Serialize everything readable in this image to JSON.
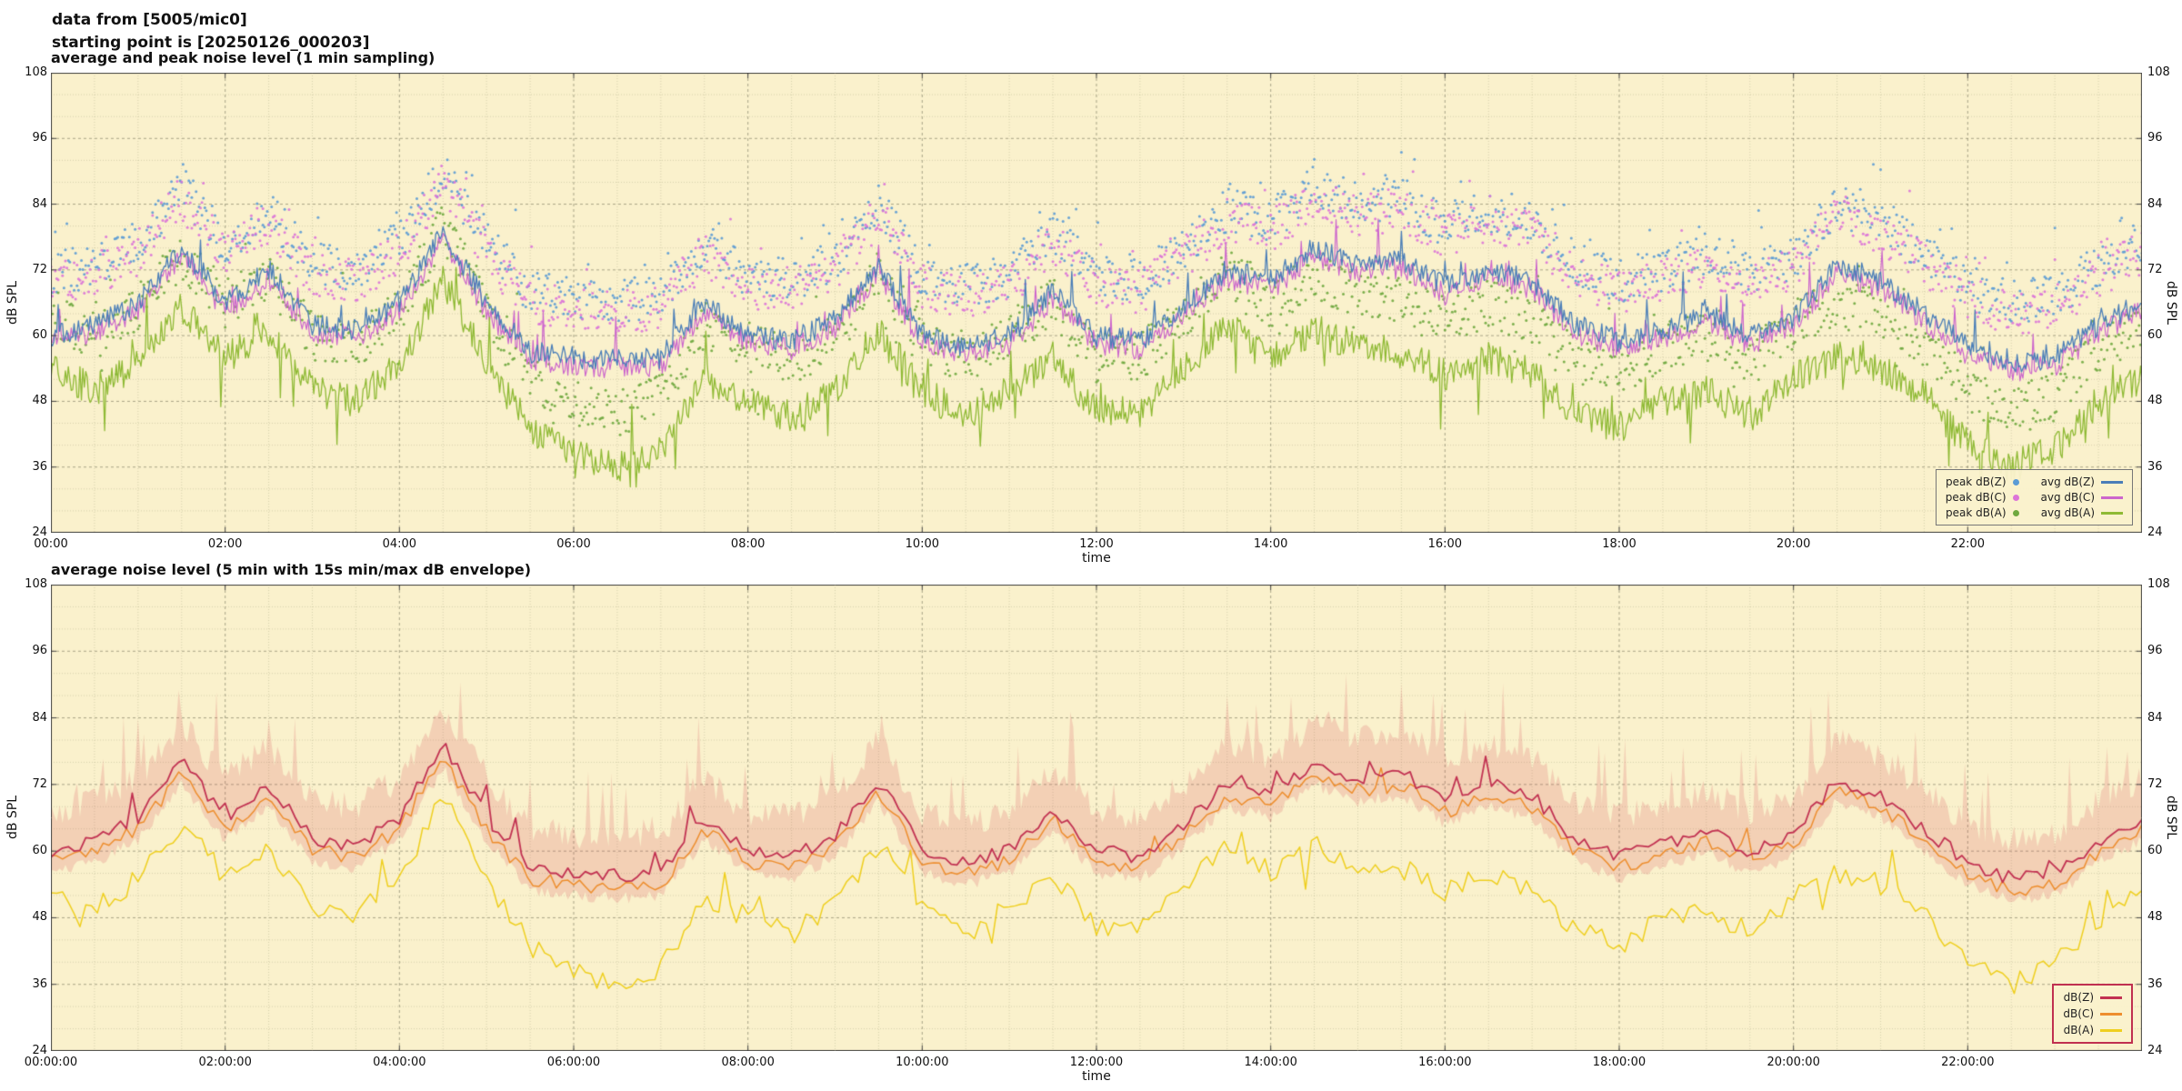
{
  "header": {
    "line1": "data from [5005/mic0]",
    "line2": "starting point is [20250126_000203]"
  },
  "style": {
    "plot_bg": "#faf1cc",
    "grid_major": "rgba(115,113,88,0.60)",
    "grid_minor": "rgba(150,148,115,0.35)",
    "frame": "#444444",
    "text": "#111111"
  },
  "chart_data": [
    {
      "type": "scatter",
      "title": "average and peak noise level (1 min sampling)",
      "xlabel": "time",
      "ylabel": "dB SPL",
      "xlim_hours": [
        0,
        24
      ],
      "ylim": [
        24,
        108
      ],
      "y_ticks": [
        24,
        36,
        48,
        60,
        72,
        84,
        96,
        108
      ],
      "x_tick_hours": [
        0,
        2,
        4,
        6,
        8,
        10,
        12,
        14,
        16,
        18,
        20,
        22
      ],
      "x_tick_labels": [
        "00:00",
        "02:00",
        "04:00",
        "06:00",
        "08:00",
        "10:00",
        "12:00",
        "14:00",
        "16:00",
        "18:00",
        "20:00",
        "22:00"
      ],
      "anchor_step_hours": 0.5,
      "grid": true,
      "legend_position": "bottom-right",
      "legend_rows": [
        [
          "peak dB(Z)",
          "avg dB(Z)"
        ],
        [
          "peak dB(C)",
          "avg dB(C)"
        ],
        [
          "peak dB(A)",
          "avg dB(A)"
        ]
      ],
      "series": [
        {
          "name": "peak dB(Z)",
          "style": "points",
          "color": "#5B9BD5",
          "step_min": 1,
          "jitter": 4,
          "spike_prob": 0.05,
          "spike_amp": 9,
          "spike_dir": 1,
          "values": [
            71,
            73,
            77,
            87,
            77,
            83,
            73,
            72,
            77,
            90,
            77,
            68,
            67,
            66.5,
            67,
            77,
            71,
            70,
            74,
            84,
            71,
            69,
            71,
            79,
            71,
            70,
            76,
            83,
            81,
            87,
            84,
            85,
            80,
            83,
            81,
            73,
            70,
            72,
            75,
            71,
            74,
            84,
            81,
            75,
            69,
            66,
            67,
            73,
            77
          ]
        },
        {
          "name": "peak dB(C)",
          "style": "points",
          "color": "#DC74D8",
          "step_min": 1,
          "jitter": 4,
          "spike_prob": 0.05,
          "spike_amp": 9,
          "spike_dir": 1,
          "values": [
            69,
            71,
            75,
            85,
            75,
            81,
            71,
            70,
            75,
            88,
            75,
            66,
            65,
            64.5,
            65,
            75,
            69,
            68,
            72,
            82,
            69,
            67,
            69,
            77,
            69,
            68,
            74,
            81,
            79,
            85,
            82,
            83,
            78,
            81,
            79,
            71,
            68,
            70,
            73,
            69,
            72,
            82,
            79,
            73,
            67,
            64,
            65,
            71,
            75
          ]
        },
        {
          "name": "peak dB(A)",
          "style": "points",
          "color": "#6FA83F",
          "step_min": 1,
          "jitter": 4.5,
          "spike_prob": 0.05,
          "spike_amp": 9,
          "spike_dir": 0,
          "values": [
            64,
            60,
            65,
            75,
            66,
            71,
            60,
            58,
            65,
            80,
            65,
            53,
            48,
            46,
            49,
            62,
            58,
            55,
            60,
            71,
            60,
            55,
            60,
            66,
            56,
            56,
            64,
            72,
            66,
            71,
            68,
            67,
            63,
            66,
            63,
            56,
            53,
            58,
            60,
            55,
            62,
            66,
            64,
            59,
            50,
            46,
            49,
            58,
            62
          ]
        },
        {
          "name": "avg dB(C)",
          "style": "line",
          "color": "#CC66CC",
          "width": 1.2,
          "step_min": 1,
          "jitter": 2,
          "spike_prob": 0.04,
          "spike_amp": 8,
          "spike_dir": 1,
          "values": [
            58.5,
            60.5,
            64.5,
            74.5,
            64.5,
            70.5,
            60.5,
            59.5,
            64.5,
            77.5,
            64.5,
            55.5,
            54.5,
            54,
            54.5,
            64.5,
            58.5,
            57.5,
            61.5,
            71.5,
            58.5,
            56.5,
            58.5,
            66.5,
            58.5,
            57.5,
            63.5,
            70.5,
            68.5,
            74.5,
            71.5,
            72.5,
            67.5,
            70.5,
            68.5,
            60.5,
            57.5,
            59.5,
            62.5,
            58.5,
            61.5,
            71.5,
            68.5,
            62.5,
            56.5,
            53.5,
            54.5,
            60.5,
            64.5
          ]
        },
        {
          "name": "avg dB(Z)",
          "style": "line",
          "color": "#4A7EB8",
          "width": 1.3,
          "step_min": 1,
          "jitter": 2,
          "spike_prob": 0.04,
          "spike_amp": 8,
          "spike_dir": 1,
          "values": [
            60,
            62,
            66,
            76,
            66,
            72,
            62,
            61,
            66,
            79,
            66,
            57,
            56,
            55.5,
            56,
            66,
            60,
            59,
            63,
            73,
            60,
            58,
            60,
            68,
            60,
            59,
            65,
            72,
            70,
            76,
            73,
            74,
            69,
            72,
            70,
            62,
            59,
            61,
            64,
            60,
            63,
            73,
            70,
            64,
            58,
            55,
            56,
            62,
            66
          ]
        },
        {
          "name": "avg dB(A)",
          "style": "line",
          "color": "#8FBA35",
          "width": 1.3,
          "step_min": 1,
          "jitter": 3,
          "spike_prob": 0.06,
          "spike_amp": 9,
          "spike_dir": 0,
          "values": [
            54,
            50,
            55,
            65,
            56,
            61,
            50,
            48,
            55,
            70,
            55,
            43,
            38,
            36,
            39,
            52,
            48,
            45,
            50,
            61,
            50,
            45,
            50,
            56,
            46,
            46,
            54,
            62,
            56,
            61,
            58,
            57,
            53,
            56,
            53,
            46,
            43,
            48,
            50,
            45,
            52,
            56,
            54,
            49,
            40,
            36,
            39,
            48,
            52
          ]
        }
      ]
    },
    {
      "type": "line",
      "title": "average noise level (5 min with 15s min/max dB envelope)",
      "xlabel": "time",
      "ylabel": "dB SPL",
      "xlim_hours": [
        0,
        24
      ],
      "ylim": [
        24,
        108
      ],
      "y_ticks": [
        24,
        36,
        48,
        60,
        72,
        84,
        96,
        108
      ],
      "x_tick_hours": [
        0,
        2,
        4,
        6,
        8,
        10,
        12,
        14,
        16,
        18,
        20,
        22
      ],
      "x_tick_labels": [
        "00:00:00",
        "02:00:00",
        "04:00:00",
        "06:00:00",
        "08:00:00",
        "10:00:00",
        "12:00:00",
        "14:00:00",
        "16:00:00",
        "18:00:00",
        "20:00:00",
        "22:00:00"
      ],
      "anchor_step_hours": 0.5,
      "grid": true,
      "legend_position": "bottom-right",
      "legend_rows": [
        [
          "dB(Z)"
        ],
        [
          "dB(C)"
        ],
        [
          "dB(A)"
        ]
      ],
      "series": [
        {
          "name": "min/max envelope",
          "style": "band",
          "color": "rgba(215,80,90,0.20)",
          "step_min": 2,
          "jitter": 2.5,
          "spike_prob": 0.1,
          "spike_amp": 13,
          "spike_dir": 1,
          "max_values": [
            67,
            69,
            73,
            83,
            73,
            79,
            69,
            68,
            73,
            86,
            73,
            64,
            63,
            62.5,
            63,
            73,
            67,
            66,
            70,
            80,
            67,
            65,
            67,
            75,
            67,
            66,
            72,
            79,
            77,
            83,
            80,
            81,
            76,
            79,
            77,
            69,
            66,
            68,
            71,
            67,
            70,
            80,
            77,
            71,
            65,
            62,
            63,
            69,
            73
          ],
          "min_values": [
            56,
            58,
            62,
            72,
            62,
            68,
            58,
            57,
            62,
            75,
            62,
            53,
            52,
            51.5,
            52,
            62,
            56,
            55,
            59,
            69,
            56,
            54,
            56,
            64,
            56,
            55,
            61,
            68,
            66,
            72,
            69,
            70,
            65,
            68,
            66,
            58,
            55,
            57,
            60,
            56,
            59,
            69,
            66,
            60,
            54,
            51,
            52,
            58,
            62
          ]
        },
        {
          "name": "dB(A)",
          "style": "line",
          "color": "#EFCF1E",
          "width": 1.5,
          "step_min": 4,
          "jitter": 2,
          "spike_prob": 0.04,
          "spike_amp": 7,
          "spike_dir": 0,
          "values": [
            54,
            50,
            55,
            65,
            56,
            61,
            50,
            48,
            55,
            70,
            55,
            43,
            38,
            36,
            39,
            52,
            48,
            45,
            50,
            61,
            50,
            45,
            50,
            56,
            46,
            46,
            54,
            62,
            56,
            61,
            58,
            57,
            53,
            56,
            53,
            46,
            43,
            48,
            50,
            45,
            52,
            56,
            54,
            49,
            40,
            36,
            39,
            48,
            52
          ]
        },
        {
          "name": "dB(C)",
          "style": "line",
          "color": "#EE8E2E",
          "width": 1.5,
          "step_min": 4,
          "jitter": 1.3,
          "spike_prob": 0.02,
          "spike_amp": 5,
          "spike_dir": 1,
          "values": [
            58,
            60,
            64,
            74,
            64,
            70,
            60,
            59,
            64,
            77,
            64,
            55,
            54,
            53.5,
            54,
            64,
            58,
            57,
            61,
            71,
            58,
            56,
            58,
            66,
            58,
            57,
            63,
            70,
            68,
            74,
            71,
            72,
            67,
            70,
            68,
            60,
            57,
            59,
            62,
            58,
            61,
            71,
            68,
            62,
            56,
            53,
            54,
            60,
            64
          ]
        },
        {
          "name": "dB(Z)",
          "style": "line",
          "color": "#C23252",
          "width": 1.8,
          "step_min": 4,
          "jitter": 1.3,
          "spike_prob": 0.03,
          "spike_amp": 6,
          "spike_dir": 1,
          "values": [
            60,
            62,
            66,
            76,
            66,
            72,
            62,
            61,
            66,
            79,
            66,
            57,
            56,
            55.5,
            56,
            66,
            60,
            59,
            63,
            73,
            60,
            58,
            60,
            68,
            60,
            59,
            65,
            72,
            70,
            76,
            73,
            74,
            69,
            72,
            70,
            62,
            59,
            61,
            64,
            60,
            63,
            73,
            70,
            64,
            58,
            55,
            56,
            62,
            66
          ]
        }
      ]
    }
  ]
}
